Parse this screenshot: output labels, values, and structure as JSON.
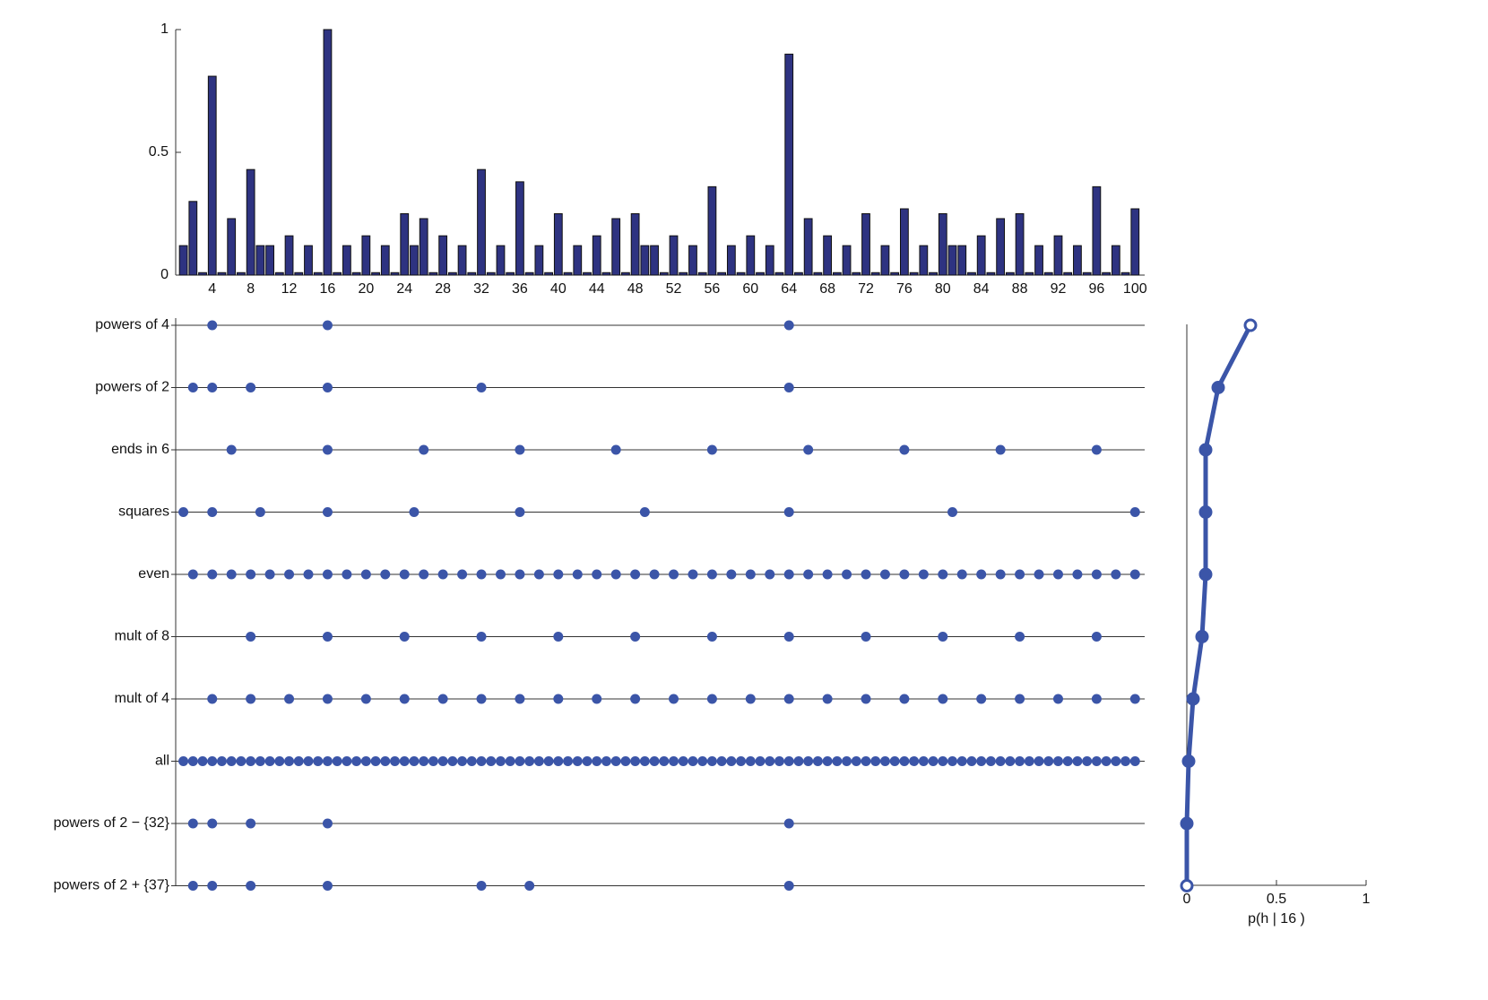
{
  "chart_data": [
    {
      "type": "bar",
      "x": [
        1,
        2,
        3,
        4,
        5,
        6,
        7,
        8,
        9,
        10,
        11,
        12,
        13,
        14,
        15,
        16,
        17,
        18,
        19,
        20,
        21,
        22,
        23,
        24,
        25,
        26,
        27,
        28,
        29,
        30,
        31,
        32,
        33,
        34,
        35,
        36,
        37,
        38,
        39,
        40,
        41,
        42,
        43,
        44,
        45,
        46,
        47,
        48,
        49,
        50,
        51,
        52,
        53,
        54,
        55,
        56,
        57,
        58,
        59,
        60,
        61,
        62,
        63,
        64,
        65,
        66,
        67,
        68,
        69,
        70,
        71,
        72,
        73,
        74,
        75,
        76,
        77,
        78,
        79,
        80,
        81,
        82,
        83,
        84,
        85,
        86,
        87,
        88,
        89,
        90,
        91,
        92,
        93,
        94,
        95,
        96,
        97,
        98,
        99,
        100
      ],
      "values": [
        0.12,
        0.3,
        0.01,
        0.81,
        0.01,
        0.23,
        0.01,
        0.43,
        0.12,
        0.12,
        0.01,
        0.16,
        0.01,
        0.12,
        0.01,
        1.0,
        0.01,
        0.12,
        0.01,
        0.16,
        0.01,
        0.12,
        0.01,
        0.25,
        0.12,
        0.23,
        0.01,
        0.16,
        0.01,
        0.12,
        0.01,
        0.43,
        0.01,
        0.12,
        0.01,
        0.38,
        0.01,
        0.12,
        0.01,
        0.25,
        0.01,
        0.12,
        0.01,
        0.16,
        0.01,
        0.23,
        0.01,
        0.25,
        0.12,
        0.12,
        0.01,
        0.16,
        0.01,
        0.12,
        0.01,
        0.36,
        0.01,
        0.12,
        0.01,
        0.16,
        0.01,
        0.12,
        0.01,
        0.9,
        0.01,
        0.23,
        0.01,
        0.16,
        0.01,
        0.12,
        0.01,
        0.25,
        0.01,
        0.12,
        0.01,
        0.27,
        0.01,
        0.12,
        0.01,
        0.25,
        0.12,
        0.12,
        0.01,
        0.16,
        0.01,
        0.23,
        0.01,
        0.25,
        0.01,
        0.12,
        0.01,
        0.16,
        0.01,
        0.12,
        0.01,
        0.36,
        0.01,
        0.12,
        0.01,
        0.27
      ],
      "color": "#2e3381",
      "xlim": [
        0.2,
        101
      ],
      "xticks": [
        4,
        8,
        12,
        16,
        20,
        24,
        28,
        32,
        36,
        40,
        44,
        48,
        52,
        56,
        60,
        64,
        68,
        72,
        76,
        80,
        84,
        88,
        92,
        96,
        100
      ],
      "ylim": [
        0,
        1
      ],
      "yticks": [
        0,
        0.5,
        1
      ]
    },
    {
      "type": "dots",
      "color": "#3b55a8",
      "xlim": [
        0.2,
        101
      ],
      "hypotheses": [
        {
          "name": "powers of 4",
          "members": [
            4,
            16,
            64
          ]
        },
        {
          "name": "powers of 2",
          "members": [
            2,
            4,
            8,
            16,
            32,
            64
          ]
        },
        {
          "name": "ends in 6",
          "members": [
            6,
            16,
            26,
            36,
            46,
            56,
            66,
            76,
            86,
            96
          ]
        },
        {
          "name": "squares",
          "members": [
            1,
            4,
            9,
            16,
            25,
            36,
            49,
            64,
            81,
            100
          ]
        },
        {
          "name": "even",
          "members": [
            2,
            4,
            6,
            8,
            10,
            12,
            14,
            16,
            18,
            20,
            22,
            24,
            26,
            28,
            30,
            32,
            34,
            36,
            38,
            40,
            42,
            44,
            46,
            48,
            50,
            52,
            54,
            56,
            58,
            60,
            62,
            64,
            66,
            68,
            70,
            72,
            74,
            76,
            78,
            80,
            82,
            84,
            86,
            88,
            90,
            92,
            94,
            96,
            98,
            100
          ]
        },
        {
          "name": "mult of 8",
          "members": [
            8,
            16,
            24,
            32,
            40,
            48,
            56,
            64,
            72,
            80,
            88,
            96
          ]
        },
        {
          "name": "mult of 4",
          "members": [
            4,
            8,
            12,
            16,
            20,
            24,
            28,
            32,
            36,
            40,
            44,
            48,
            52,
            56,
            60,
            64,
            68,
            72,
            76,
            80,
            84,
            88,
            92,
            96,
            100
          ]
        },
        {
          "name": "all",
          "members": [
            1,
            2,
            3,
            4,
            5,
            6,
            7,
            8,
            9,
            10,
            11,
            12,
            13,
            14,
            15,
            16,
            17,
            18,
            19,
            20,
            21,
            22,
            23,
            24,
            25,
            26,
            27,
            28,
            29,
            30,
            31,
            32,
            33,
            34,
            35,
            36,
            37,
            38,
            39,
            40,
            41,
            42,
            43,
            44,
            45,
            46,
            47,
            48,
            49,
            50,
            51,
            52,
            53,
            54,
            55,
            56,
            57,
            58,
            59,
            60,
            61,
            62,
            63,
            64,
            65,
            66,
            67,
            68,
            69,
            70,
            71,
            72,
            73,
            74,
            75,
            76,
            77,
            78,
            79,
            80,
            81,
            82,
            83,
            84,
            85,
            86,
            87,
            88,
            89,
            90,
            91,
            92,
            93,
            94,
            95,
            96,
            97,
            98,
            99,
            100
          ]
        },
        {
          "name": "powers of 2 − {32}",
          "members": [
            2,
            4,
            8,
            16,
            64
          ]
        },
        {
          "name": "powers of 2 + {37}",
          "members": [
            2,
            4,
            8,
            16,
            32,
            37,
            64
          ]
        }
      ]
    },
    {
      "type": "line",
      "xlabel": "p(h | 16 )",
      "color": "#3b55a8",
      "values": [
        0.355,
        0.175,
        0.105,
        0.105,
        0.105,
        0.085,
        0.035,
        0.01,
        0.0,
        0.0
      ],
      "xlim": [
        0,
        1
      ],
      "xticks": [
        0,
        0.5,
        1
      ]
    }
  ]
}
